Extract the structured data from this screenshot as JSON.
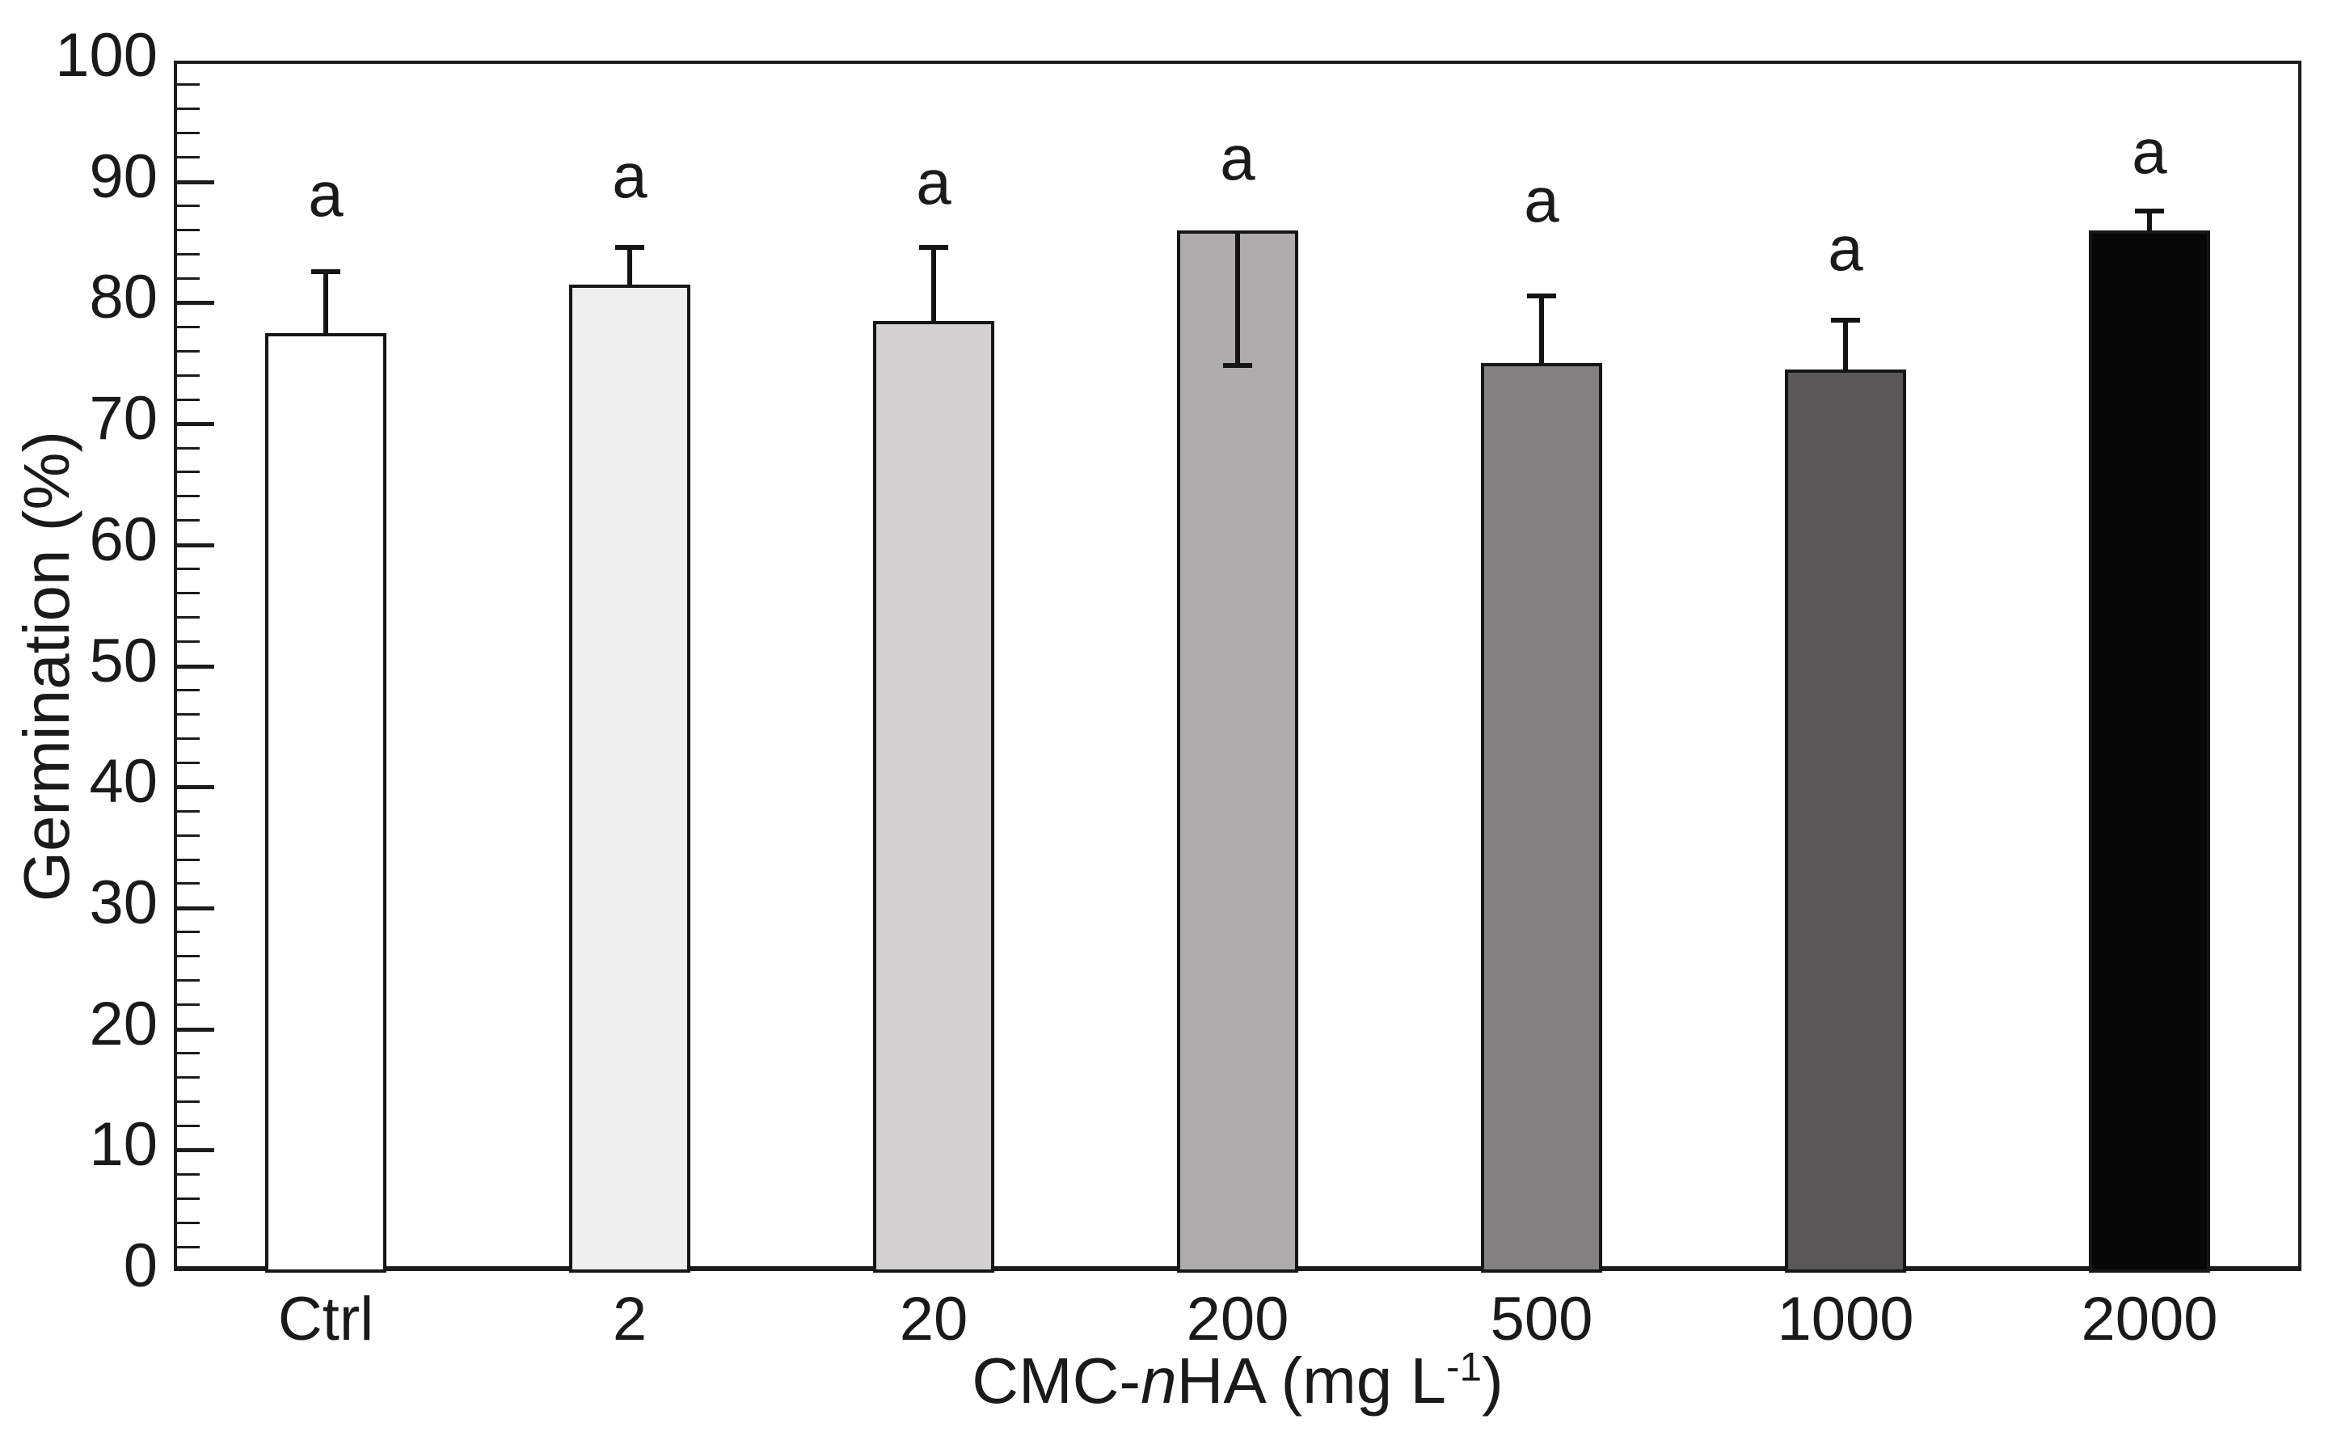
{
  "chart_data": {
    "type": "bar",
    "title": "",
    "ylabel": "Germination (%)",
    "xlabel": {
      "prefix": "CMC-",
      "italic_var": "n",
      "mid": "HA (mg L",
      "superscript": "-1",
      "suffix": ")"
    },
    "categories": [
      "Ctrl",
      "2",
      "20",
      "200",
      "500",
      "1000",
      "2000"
    ],
    "values": [
      77.5,
      81.5,
      78.5,
      86,
      75,
      74.5,
      86
    ],
    "errors": [
      {
        "direction": "up",
        "magnitude": 5.0
      },
      {
        "direction": "up",
        "magnitude": 3.0
      },
      {
        "direction": "up",
        "magnitude": 6.0
      },
      {
        "direction": "down",
        "magnitude": 11.0
      },
      {
        "direction": "up",
        "magnitude": 5.5
      },
      {
        "direction": "up",
        "magnitude": 4.0
      },
      {
        "direction": "up",
        "magnitude": 1.5
      }
    ],
    "significance_letters": [
      "a",
      "a",
      "a",
      "a",
      "a",
      "a",
      "a"
    ],
    "significance_letter_y": [
      89,
      90.5,
      90,
      92,
      88.5,
      84.5,
      92.5
    ],
    "bar_colors": [
      "#ffffff",
      "#f0efef",
      "#d2d0d0",
      "#aeacad",
      "#838181",
      "#595757",
      "#070707"
    ],
    "bar_border_color": "#161616",
    "axis_color": "#1c1c1c",
    "background_color": "#ffffff",
    "ylim": [
      0,
      100
    ],
    "ytick_step": 10,
    "minor_tick_step": 2,
    "grid": "off",
    "legend": "none"
  }
}
